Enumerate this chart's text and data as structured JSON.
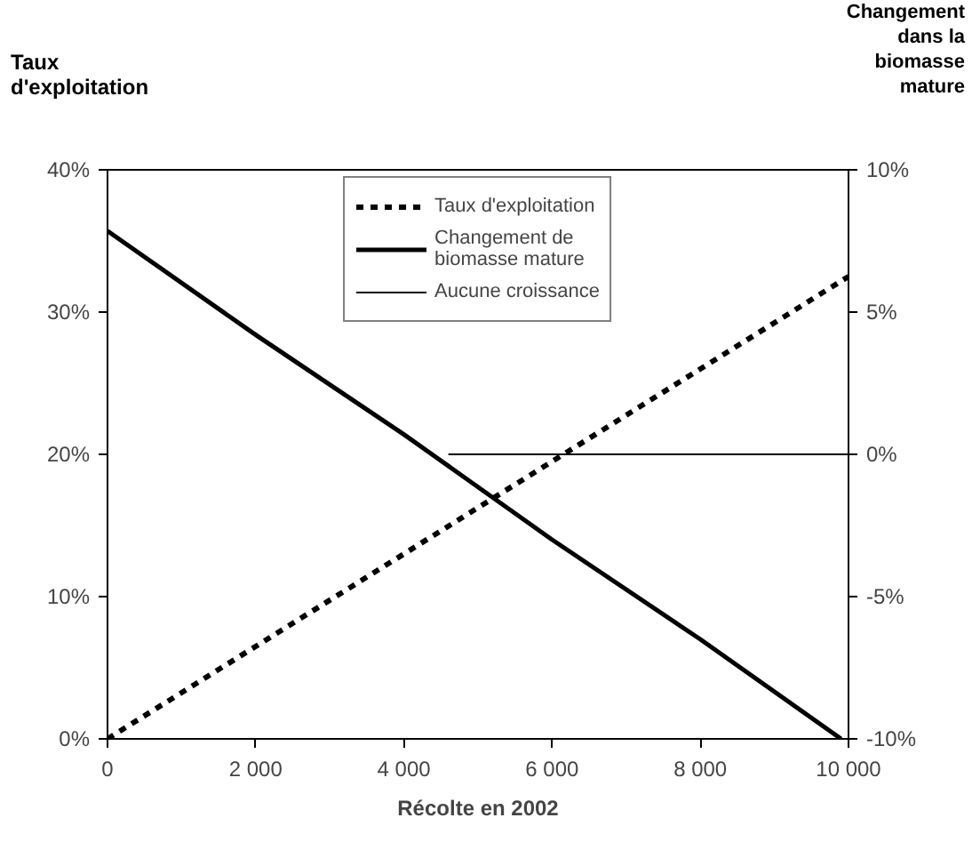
{
  "chart_data": {
    "type": "line",
    "xlabel": "Récolte en 2002",
    "ylabel": "Taux\nd'exploitation",
    "y2label": "Changement\ndans la\nbiomasse\nmature",
    "xlim": [
      0,
      10000
    ],
    "xticks": [
      {
        "value": 0,
        "label": "0"
      },
      {
        "value": 2000,
        "label": "2 000"
      },
      {
        "value": 4000,
        "label": "4 000"
      },
      {
        "value": 6000,
        "label": "6 000"
      },
      {
        "value": 8000,
        "label": "8 000"
      },
      {
        "value": 10000,
        "label": "10 000"
      }
    ],
    "ylim": [
      0,
      40
    ],
    "yticks": [
      {
        "value": 0,
        "label": "0%"
      },
      {
        "value": 10,
        "label": "10%"
      },
      {
        "value": 20,
        "label": "20%"
      },
      {
        "value": 30,
        "label": "30%"
      },
      {
        "value": 40,
        "label": "40%"
      }
    ],
    "y2lim": [
      -10,
      10
    ],
    "y2ticks": [
      {
        "value": -10,
        "label": "-10%"
      },
      {
        "value": -5,
        "label": "-5%"
      },
      {
        "value": 0,
        "label": "0%"
      },
      {
        "value": 5,
        "label": "5%"
      },
      {
        "value": 10,
        "label": "10%"
      }
    ],
    "legend": "top",
    "grid": false,
    "series": [
      {
        "name": "Taux d'exploitation",
        "color": "#000000",
        "line_style": "dashed",
        "x": [
          0,
          2000,
          4000,
          6000,
          8000,
          10000
        ],
        "values": [
          0,
          6.5,
          13,
          19.5,
          26,
          32.5
        ]
      },
      {
        "name": "Changement de\nbiomasse mature",
        "color": "#000000",
        "axis": "y2",
        "x": [
          0,
          2000,
          4000,
          6000,
          8000,
          9900
        ],
        "values": [
          7.85,
          4.2,
          0.7,
          -3,
          -6.5,
          -10
        ]
      },
      {
        "name": "Aucune croissance",
        "color": "#000000",
        "axis": "y2",
        "x": [
          4600,
          10000
        ],
        "values": [
          0,
          0
        ]
      }
    ]
  }
}
